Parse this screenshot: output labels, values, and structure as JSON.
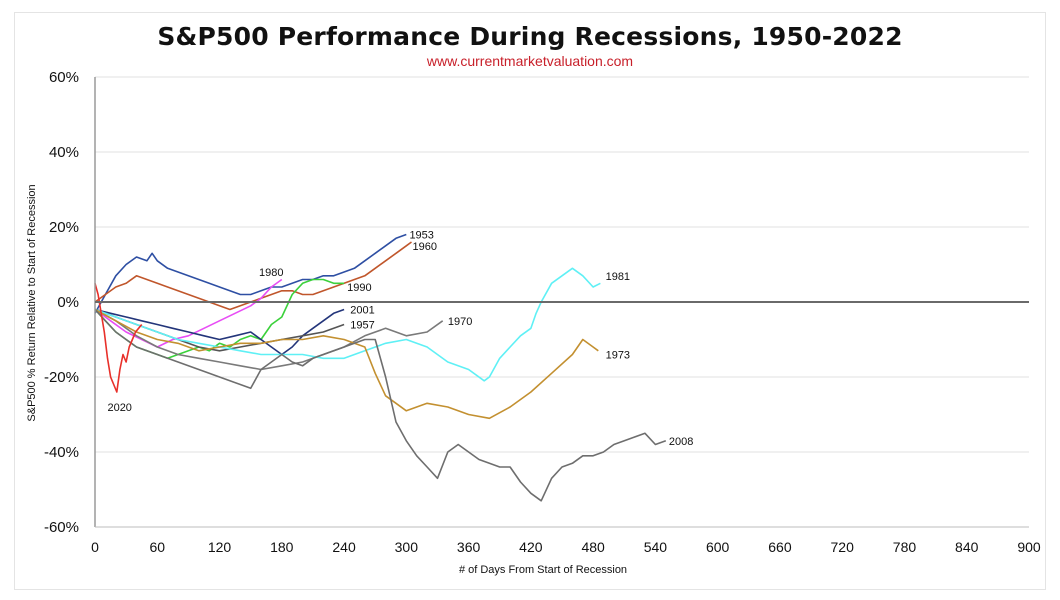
{
  "chart_data": {
    "type": "line",
    "title": "S&P500 Performance During Recessions, 1950-2022",
    "subtitle": "www.currentmarketvaluation.com",
    "xlabel": "# of Days From Start of Recession",
    "ylabel": "S&P500 % Return Relative to Start of Recession",
    "xlim": [
      0,
      900
    ],
    "ylim": [
      -60,
      60
    ],
    "xticks": [
      0,
      60,
      120,
      180,
      240,
      300,
      360,
      420,
      480,
      540,
      600,
      660,
      720,
      780,
      840,
      900
    ],
    "yticks": [
      60,
      40,
      20,
      0,
      -20,
      -40,
      -60
    ],
    "ytick_labels": [
      "60%",
      "40%",
      "20%",
      "0%",
      "-20%",
      "-40%",
      "-60%"
    ],
    "grid": "horizontal",
    "legend": "inline labels",
    "series": [
      {
        "name": "1953",
        "color": "#2e4fa3",
        "x": [
          0,
          10,
          20,
          30,
          40,
          50,
          55,
          60,
          70,
          80,
          90,
          100,
          110,
          120,
          130,
          140,
          150,
          160,
          170,
          180,
          190,
          200,
          210,
          220,
          230,
          240,
          250,
          260,
          270,
          280,
          290,
          300
        ],
        "y": [
          -3,
          2,
          7,
          10,
          12,
          11,
          13,
          11,
          9,
          8,
          7,
          6,
          5,
          4,
          3,
          2,
          2,
          3,
          4,
          4,
          5,
          6,
          6,
          7,
          7,
          8,
          9,
          11,
          13,
          15,
          17,
          18
        ]
      },
      {
        "name": "1960",
        "color": "#c0562b",
        "x": [
          0,
          10,
          20,
          30,
          40,
          50,
          60,
          70,
          80,
          90,
          100,
          110,
          120,
          130,
          140,
          150,
          160,
          170,
          180,
          190,
          200,
          210,
          220,
          230,
          240,
          250,
          260,
          270,
          280,
          290,
          300,
          305
        ],
        "y": [
          0,
          2,
          4,
          5,
          7,
          6,
          5,
          4,
          3,
          2,
          1,
          0,
          -1,
          -2,
          -1,
          0,
          1,
          2,
          3,
          3,
          2,
          2,
          3,
          4,
          5,
          6,
          7,
          9,
          11,
          13,
          15,
          16
        ]
      },
      {
        "name": "1980",
        "color": "#e84df5",
        "x": [
          0,
          15,
          30,
          45,
          60,
          75,
          90,
          105,
          120,
          135,
          150,
          160,
          170,
          180
        ],
        "y": [
          -2,
          -5,
          -8,
          -10,
          -12,
          -10,
          -9,
          -7,
          -5,
          -3,
          -1,
          1,
          4,
          6
        ]
      },
      {
        "name": "1990",
        "color": "#3bd13b",
        "x": [
          0,
          10,
          20,
          30,
          40,
          50,
          60,
          70,
          80,
          90,
          100,
          110,
          120,
          130,
          140,
          150,
          160,
          170,
          180,
          190,
          200,
          210,
          220,
          230,
          240
        ],
        "y": [
          -2,
          -5,
          -8,
          -10,
          -12,
          -13,
          -14,
          -15,
          -14,
          -13,
          -12,
          -13,
          -11,
          -12,
          -10,
          -9,
          -10,
          -6,
          -4,
          2,
          5,
          6,
          6,
          5,
          5
        ]
      },
      {
        "name": "2001",
        "color": "#23357a",
        "x": [
          0,
          15,
          30,
          45,
          60,
          75,
          90,
          105,
          120,
          135,
          150,
          160,
          170,
          180,
          190,
          200,
          210,
          220,
          230,
          240
        ],
        "y": [
          -2,
          -3,
          -4,
          -5,
          -6,
          -7,
          -8,
          -9,
          -10,
          -9,
          -8,
          -10,
          -12,
          -14,
          -12,
          -9,
          -7,
          -5,
          -3,
          -2
        ]
      },
      {
        "name": "1957",
        "color": "#555555",
        "x": [
          0,
          20,
          40,
          60,
          80,
          100,
          120,
          140,
          160,
          180,
          200,
          220,
          240
        ],
        "y": [
          -2,
          -4,
          -6,
          -8,
          -10,
          -12,
          -13,
          -12,
          -11,
          -10,
          -9,
          -8,
          -6
        ]
      },
      {
        "name": "1970",
        "color": "#7a7a7a",
        "x": [
          0,
          20,
          40,
          60,
          80,
          100,
          120,
          140,
          160,
          180,
          200,
          220,
          240,
          260,
          280,
          300,
          320,
          335
        ],
        "y": [
          -2,
          -5,
          -9,
          -12,
          -14,
          -15,
          -16,
          -17,
          -18,
          -17,
          -16,
          -14,
          -12,
          -9,
          -7,
          -9,
          -8,
          -5
        ]
      },
      {
        "name": "1981",
        "color": "#5ff0f5",
        "x": [
          0,
          20,
          40,
          60,
          80,
          100,
          120,
          140,
          160,
          180,
          200,
          220,
          240,
          260,
          280,
          300,
          320,
          340,
          360,
          375,
          380,
          390,
          400,
          410,
          420,
          425,
          430,
          440,
          450,
          460,
          470,
          480,
          487
        ],
        "y": [
          -2,
          -4,
          -6,
          -8,
          -10,
          -11,
          -12,
          -13,
          -14,
          -14,
          -14,
          -15,
          -15,
          -13,
          -11,
          -10,
          -12,
          -16,
          -18,
          -21,
          -20,
          -15,
          -12,
          -9,
          -7,
          -3,
          0,
          5,
          7,
          9,
          7,
          4,
          5
        ]
      },
      {
        "name": "1973",
        "color": "#c39030",
        "x": [
          0,
          20,
          40,
          60,
          80,
          100,
          120,
          140,
          160,
          180,
          200,
          220,
          240,
          260,
          270,
          280,
          290,
          300,
          320,
          340,
          360,
          380,
          400,
          420,
          440,
          460,
          470,
          480,
          485
        ],
        "y": [
          -2,
          -5,
          -8,
          -10,
          -11,
          -13,
          -12,
          -11,
          -11,
          -10,
          -10,
          -9,
          -10,
          -12,
          -19,
          -25,
          -27,
          -29,
          -27,
          -28,
          -30,
          -31,
          -28,
          -24,
          -19,
          -14,
          -10,
          -12,
          -13
        ]
      },
      {
        "name": "2008",
        "color": "#6e6e6e",
        "x": [
          0,
          10,
          20,
          30,
          40,
          50,
          60,
          70,
          80,
          90,
          100,
          110,
          120,
          130,
          140,
          150,
          160,
          170,
          180,
          190,
          200,
          210,
          220,
          230,
          240,
          250,
          260,
          270,
          280,
          290,
          300,
          310,
          320,
          330,
          340,
          350,
          360,
          370,
          380,
          390,
          400,
          410,
          420,
          430,
          440,
          450,
          460,
          470,
          480,
          490,
          500,
          510,
          520,
          530,
          540,
          550
        ],
        "y": [
          -2,
          -5,
          -8,
          -10,
          -12,
          -13,
          -14,
          -15,
          -16,
          -17,
          -18,
          -19,
          -20,
          -21,
          -22,
          -23,
          -18,
          -16,
          -14,
          -16,
          -17,
          -15,
          -14,
          -13,
          -12,
          -11,
          -10,
          -10,
          -20,
          -32,
          -37,
          -41,
          -44,
          -47,
          -40,
          -38,
          -40,
          -42,
          -43,
          -44,
          -44,
          -48,
          -51,
          -53,
          -47,
          -44,
          -43,
          -41,
          -41,
          -40,
          -38,
          -37,
          -36,
          -35,
          -38,
          -37
        ]
      },
      {
        "name": "2020",
        "color": "#e8302a",
        "x": [
          0,
          3,
          6,
          9,
          12,
          15,
          18,
          21,
          24,
          27,
          30,
          33,
          36,
          39,
          42,
          45
        ],
        "y": [
          5,
          2,
          -3,
          -8,
          -15,
          -20,
          -22,
          -24,
          -18,
          -14,
          -16,
          -12,
          -10,
          -8,
          -7,
          -6
        ]
      }
    ],
    "series_labels": [
      {
        "name": "1953",
        "x": 303,
        "y": 18
      },
      {
        "name": "1960",
        "x": 306,
        "y": 15
      },
      {
        "name": "1980",
        "x": 158,
        "y": 8
      },
      {
        "name": "1990",
        "x": 243,
        "y": 4
      },
      {
        "name": "2001",
        "x": 246,
        "y": -2
      },
      {
        "name": "1957",
        "x": 246,
        "y": -6
      },
      {
        "name": "1970",
        "x": 340,
        "y": -5
      },
      {
        "name": "1981",
        "x": 492,
        "y": 7
      },
      {
        "name": "1973",
        "x": 492,
        "y": -14
      },
      {
        "name": "2008",
        "x": 553,
        "y": -37
      },
      {
        "name": "2020",
        "x": 12,
        "y": -28
      }
    ]
  }
}
